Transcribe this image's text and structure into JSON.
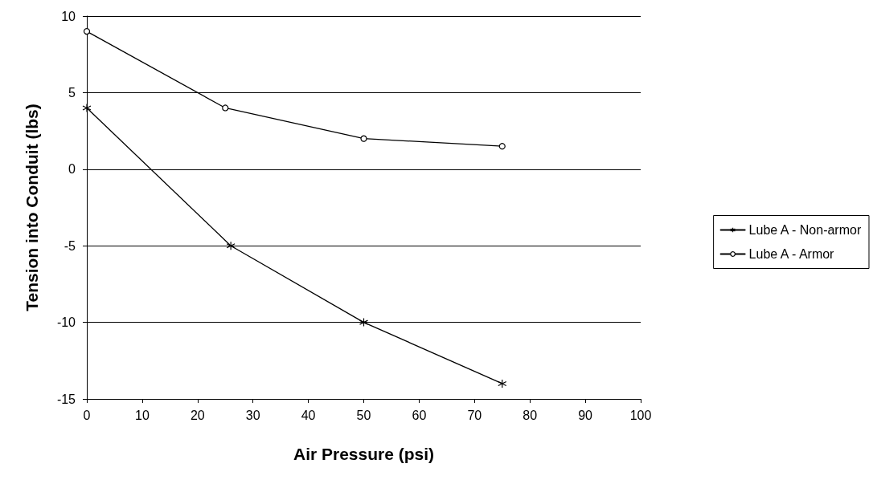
{
  "chart_data": {
    "type": "line",
    "xlabel": "Air Pressure (psi)",
    "ylabel": "Tension into Conduit (lbs)",
    "xlim": [
      0,
      100
    ],
    "xticks": [
      0,
      10,
      20,
      30,
      40,
      50,
      60,
      70,
      80,
      90,
      100
    ],
    "ylim": [
      -15,
      10
    ],
    "yticks": [
      -15,
      -10,
      -5,
      0,
      5,
      10
    ],
    "grid": "y",
    "legend": "right",
    "series": [
      {
        "name": "Lube A - Non-armor",
        "color": "#000000",
        "marker": "cross",
        "x": [
          0,
          26,
          50,
          75
        ],
        "values": [
          4,
          -5,
          -10,
          -14
        ]
      },
      {
        "name": "Lube A - Armor",
        "color": "#000000",
        "marker": "circle",
        "x": [
          0,
          25,
          50,
          75
        ],
        "values": [
          9,
          4,
          2,
          1.5
        ]
      }
    ]
  }
}
